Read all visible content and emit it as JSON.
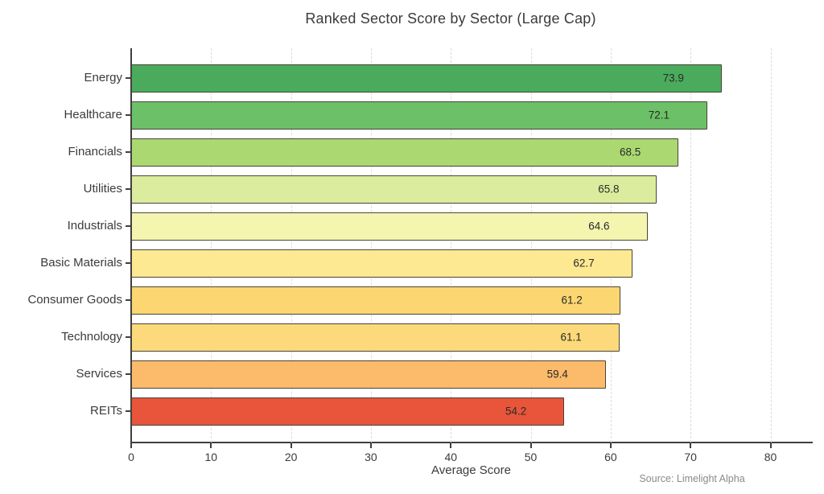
{
  "chart_data": {
    "type": "bar",
    "orientation": "horizontal",
    "title": "Ranked Sector Score by Sector (Large Cap)",
    "xlabel": "Average Score",
    "source": "Source: Limelight Alpha",
    "categories": [
      "Energy",
      "Healthcare",
      "Financials",
      "Utilities",
      "Industrials",
      "Basic Materials",
      "Consumer Goods",
      "Technology",
      "Services",
      "REITs"
    ],
    "values": [
      73.9,
      72.1,
      68.5,
      65.8,
      64.6,
      62.7,
      61.2,
      61.1,
      59.4,
      54.2
    ],
    "value_labels": [
      "73.9",
      "72.1",
      "68.5",
      "65.8",
      "64.6",
      "62.7",
      "61.2",
      "61.1",
      "59.4",
      "54.2"
    ],
    "bar_colors": [
      "#4aab5c",
      "#6cc067",
      "#abd871",
      "#dcec9e",
      "#f4f6b0",
      "#fce992",
      "#fcd671",
      "#fcd97a",
      "#fbbb6a",
      "#e8553a"
    ],
    "bar_edge_color": "#4a443a",
    "xlim": [
      0,
      85
    ],
    "xticks": [
      0,
      10,
      20,
      30,
      40,
      50,
      60,
      70,
      80
    ],
    "grid": "vertical-dashed",
    "gridline_color": "#dcdcdc",
    "legend": "none"
  }
}
